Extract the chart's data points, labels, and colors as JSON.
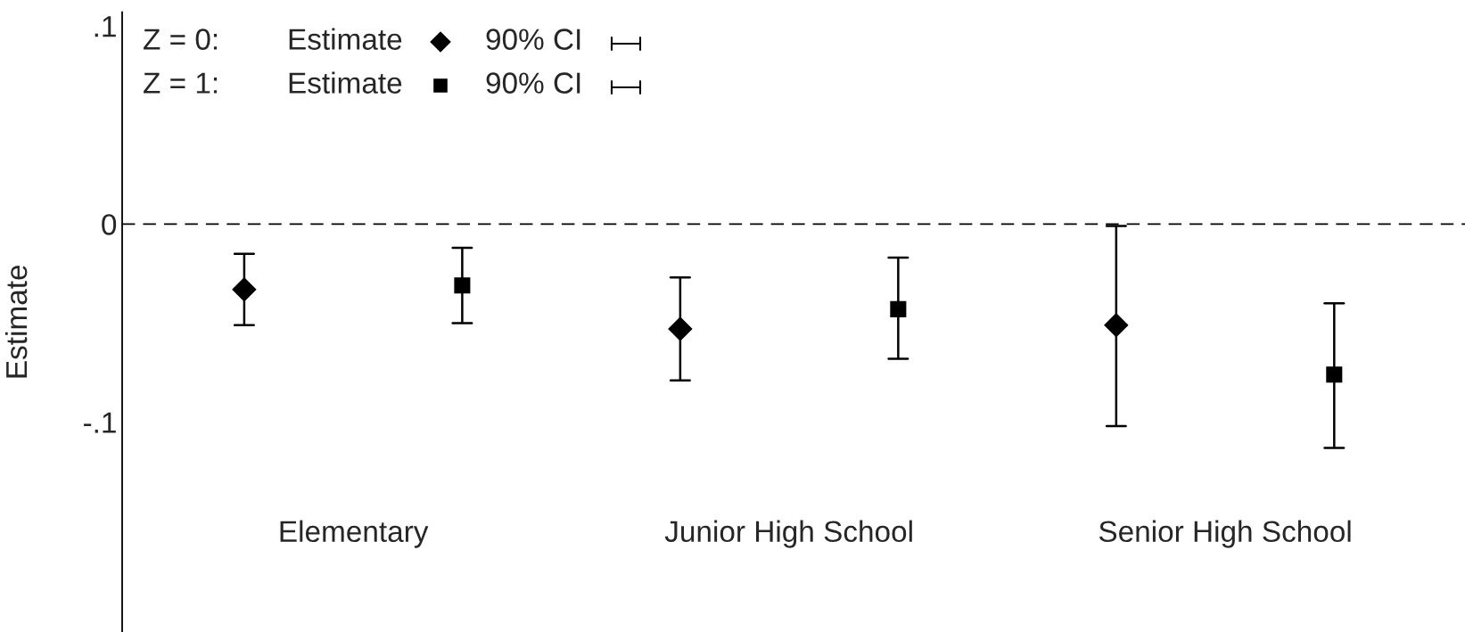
{
  "chart_data": {
    "type": "scatter",
    "ylabel": "Estimate",
    "categories": [
      "Elementary",
      "Junior High School",
      "Senior High School"
    ],
    "series": [
      {
        "color": "#000000",
        "marker": "diamond",
        "values": [
          -0.033,
          -0.053,
          -0.051
        ],
        "errors": [
          [
            -0.051,
            -0.015
          ],
          [
            -0.079,
            -0.027
          ],
          [
            -0.102,
            -0.001
          ]
        ]
      },
      {
        "color": "#000000",
        "marker": "square",
        "values": [
          -0.031,
          -0.043,
          -0.076
        ],
        "errors": [
          [
            -0.05,
            -0.012
          ],
          [
            -0.068,
            -0.017
          ],
          [
            -0.113,
            -0.04
          ]
        ]
      }
    ],
    "annotations": [
      "Z = 0:",
      "Estimate",
      "90% CI",
      "Z = 1:",
      "Estimate",
      "90% CI"
    ],
    "ylim": [
      -0.206,
      0.107
    ],
    "yticks": [
      {
        "value": -0.1,
        "label": "-.1"
      },
      0,
      {
        "value": 0.1,
        "label": ".1"
      }
    ],
    "ref_lines": [
      {
        "axis": "y",
        "value": 0,
        "color": "#000000",
        "line_style": "dashed"
      }
    ],
    "grid": false
  }
}
